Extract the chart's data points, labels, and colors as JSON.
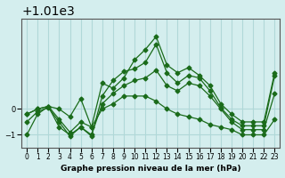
{
  "title": "Graphe pression niveau de la mer (hPa)",
  "xlabel": "Graphe pression niveau de la mer (hPa)",
  "background_color": "#d4eeee",
  "grid_color": "#b0d8d8",
  "line_color": "#1a6b1a",
  "ylim": [
    1008.5,
    1013.5
  ],
  "xlim": [
    -0.5,
    23.5
  ],
  "yticks": [
    1009,
    1010
  ],
  "xticks": [
    0,
    1,
    2,
    3,
    4,
    5,
    6,
    7,
    8,
    9,
    10,
    11,
    12,
    13,
    14,
    15,
    16,
    17,
    18,
    19,
    20,
    21,
    22,
    23
  ],
  "lines": [
    {
      "x": [
        0,
        1,
        2,
        3,
        4,
        5,
        6,
        7,
        8,
        9,
        10,
        11,
        12,
        13,
        14,
        15,
        16,
        17,
        18,
        19,
        20,
        21,
        22,
        23
      ],
      "y": [
        1009.0,
        1009.8,
        1010.1,
        1010.0,
        1009.7,
        1010.4,
        1009.3,
        1011.0,
        1010.8,
        1011.2,
        1011.9,
        1012.3,
        1012.8,
        1011.7,
        1011.4,
        1011.6,
        1011.3,
        1010.9,
        1010.2,
        1009.8,
        1009.5,
        1009.5,
        1009.5,
        1011.4
      ]
    },
    {
      "x": [
        0,
        1,
        2,
        3,
        4,
        5,
        6,
        7,
        8,
        9,
        10,
        11,
        12,
        13,
        14,
        15,
        16,
        17,
        18,
        19,
        20,
        21,
        22,
        23
      ],
      "y": [
        1009.8,
        1010.0,
        1010.1,
        1009.6,
        1009.1,
        1009.5,
        1009.3,
        1010.0,
        1010.2,
        1010.5,
        1010.5,
        1010.5,
        1010.3,
        1010.0,
        1009.8,
        1009.7,
        1009.6,
        1009.4,
        1009.3,
        1009.2,
        1009.0,
        1009.0,
        1009.0,
        1009.6
      ]
    },
    {
      "x": [
        0,
        1,
        2,
        3,
        4,
        5,
        6,
        7,
        8,
        9,
        10,
        11,
        12,
        13,
        14,
        15,
        16,
        17,
        18,
        19,
        20,
        21,
        22,
        23
      ],
      "y": [
        1009.8,
        1010.0,
        1010.1,
        1009.3,
        1009.0,
        1009.3,
        1009.0,
        1010.2,
        1010.6,
        1010.9,
        1011.1,
        1011.2,
        1011.5,
        1010.9,
        1010.7,
        1011.0,
        1010.9,
        1010.5,
        1010.0,
        1009.5,
        1009.2,
        1009.2,
        1009.2,
        1010.6
      ]
    },
    {
      "x": [
        0,
        1,
        2,
        3,
        4,
        5,
        6,
        7,
        8,
        9,
        10,
        11,
        12,
        13,
        14,
        15,
        16,
        17,
        18,
        19,
        20,
        21,
        22,
        23
      ],
      "y": [
        1009.5,
        1009.9,
        1010.05,
        1009.5,
        1008.95,
        1009.3,
        1008.95,
        1010.5,
        1011.1,
        1011.45,
        1011.55,
        1011.8,
        1012.5,
        1011.4,
        1011.0,
        1011.3,
        1011.2,
        1010.7,
        1010.05,
        1009.6,
        1009.35,
        1009.35,
        1009.35,
        1011.3
      ]
    }
  ]
}
